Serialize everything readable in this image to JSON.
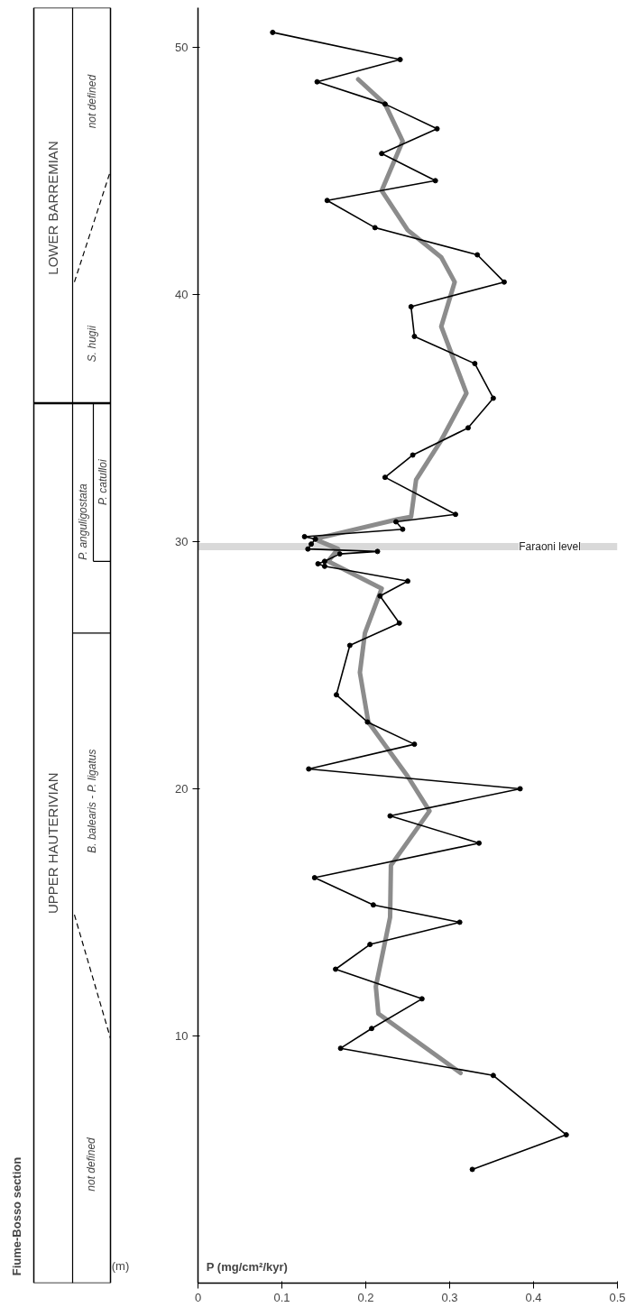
{
  "chart_data": {
    "type": "line",
    "title": "Fiume-Bosso section",
    "xlabel": "P (mg/cm²/kyr)",
    "ylabel": "(m)",
    "xlim": [
      0,
      0.5
    ],
    "xticks": [
      0,
      0.1,
      0.2,
      0.3,
      0.4,
      0.5
    ],
    "ylim": [
      0,
      51.6
    ],
    "yticks": [
      10,
      20,
      30,
      40,
      50
    ],
    "grid": false,
    "series": [
      {
        "color": "#000000",
        "marker": "circle",
        "x": [
          0.327,
          0.439,
          0.352,
          0.17,
          0.207,
          0.267,
          0.164,
          0.205,
          0.312,
          0.209,
          0.139,
          0.335,
          0.229,
          0.384,
          0.132,
          0.258,
          0.202,
          0.165,
          0.181,
          0.24,
          0.217,
          0.25,
          0.151,
          0.143,
          0.151,
          0.169,
          0.214,
          0.131,
          0.135,
          0.14,
          0.127,
          0.244,
          0.236,
          0.307,
          0.223,
          0.256,
          0.322,
          0.352,
          0.33,
          0.258,
          0.254,
          0.365,
          0.333,
          0.211,
          0.154,
          0.283,
          0.219,
          0.285,
          0.223,
          0.142,
          0.241,
          0.089
        ],
        "values": [
          4.6,
          6.0,
          8.4,
          9.5,
          10.3,
          11.5,
          12.7,
          13.7,
          14.6,
          15.3,
          16.4,
          17.8,
          18.9,
          20.0,
          20.8,
          21.8,
          22.7,
          23.8,
          25.8,
          26.7,
          27.8,
          28.4,
          29.0,
          29.1,
          29.2,
          29.5,
          29.6,
          29.7,
          29.9,
          30.1,
          30.2,
          30.5,
          30.8,
          31.1,
          32.6,
          33.5,
          34.6,
          35.8,
          37.2,
          38.3,
          39.5,
          40.5,
          41.6,
          42.7,
          43.8,
          44.6,
          45.7,
          46.7,
          47.7,
          48.6,
          49.5,
          50.6
        ]
      },
      {
        "color": "#8c8c8c",
        "marker": "none",
        "x": [
          0.313,
          0.215,
          0.212,
          0.229,
          0.23,
          0.276,
          0.25,
          0.203,
          0.193,
          0.199,
          0.219,
          0.155,
          0.167,
          0.139,
          0.238,
          0.254,
          0.26,
          0.29,
          0.32,
          0.29,
          0.306,
          0.29,
          0.25,
          0.219,
          0.244,
          0.223,
          0.191
        ],
        "values": [
          8.5,
          10.9,
          12.0,
          14.8,
          16.9,
          19.1,
          20.5,
          22.7,
          24.7,
          26.3,
          28.1,
          29.2,
          29.7,
          30.1,
          30.9,
          31.0,
          32.5,
          34.1,
          36.0,
          38.7,
          40.5,
          41.5,
          42.6,
          44.2,
          46.2,
          47.7,
          48.7
        ]
      }
    ],
    "ref_lines": [
      {
        "axis": "y",
        "value": 29.8,
        "label": "Faraoni level",
        "color": "#d9d9d9"
      }
    ],
    "annotations": [
      "UPPER HAUTERIVIAN",
      "LOWER BARREMIAN",
      "not defined",
      "B. balearis - P. ligatus",
      "P. anguligostata",
      "P. catulloi",
      "S. hugii",
      "not defined"
    ]
  }
}
